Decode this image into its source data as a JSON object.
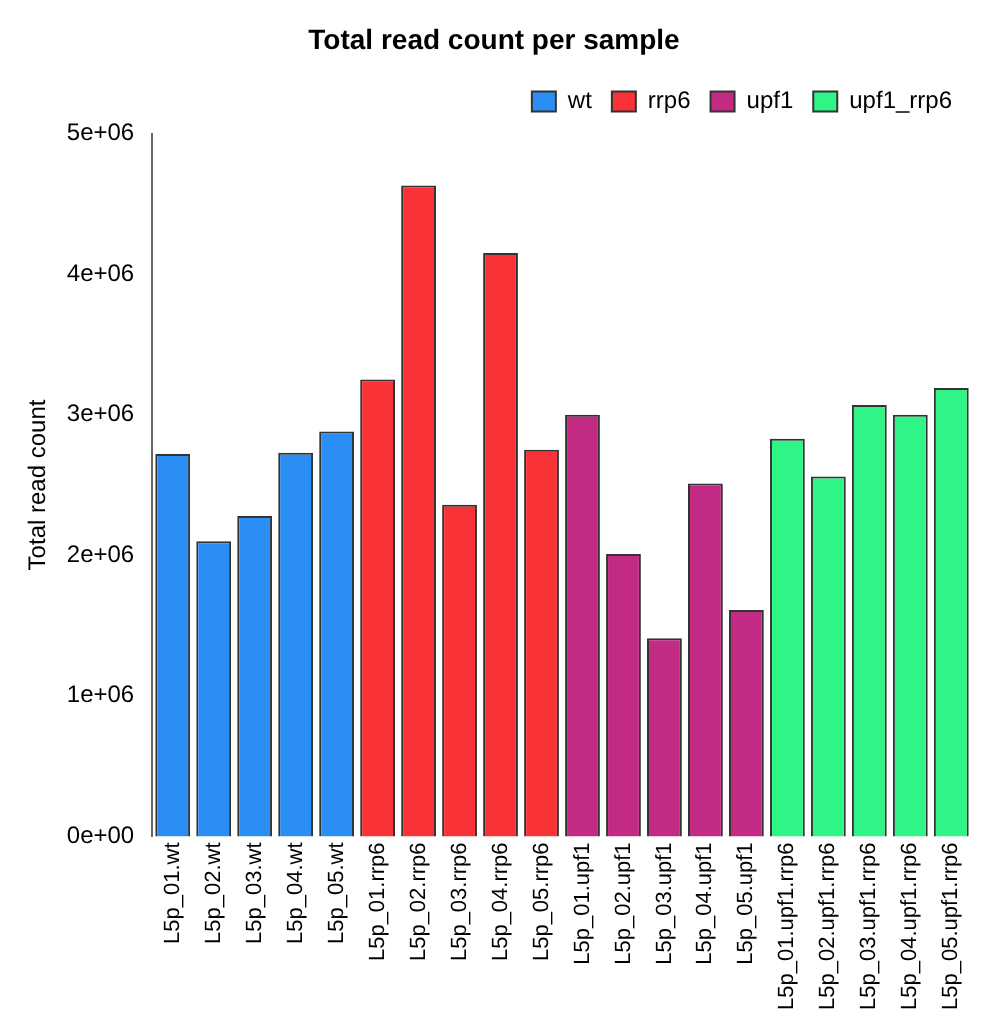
{
  "chart_data": {
    "type": "bar",
    "title": "Total read count per sample",
    "ylabel": "Total read count",
    "categories": [
      "L5p_01.wt",
      "L5p_02.wt",
      "L5p_03.wt",
      "L5p_04.wt",
      "L5p_05.wt",
      "L5p_01.rrp6",
      "L5p_02.rrp6",
      "L5p_03.rrp6",
      "L5p_04.rrp6",
      "L5p_05.rrp6",
      "L5p_01.upf1",
      "L5p_02.upf1",
      "L5p_03.upf1",
      "L5p_04.upf1",
      "L5p_05.upf1",
      "L5p_01.upf1.rrp6",
      "L5p_02.upf1.rrp6",
      "L5p_03.upf1.rrp6",
      "L5p_04.upf1.rrp6",
      "L5p_05.upf1.rrp6"
    ],
    "series": [
      {
        "name": "wt",
        "color": "#2b8ef5",
        "values": [
          2720000,
          2100000,
          2280000,
          2730000,
          2880000,
          null,
          null,
          null,
          null,
          null,
          null,
          null,
          null,
          null,
          null,
          null,
          null,
          null,
          null,
          null
        ]
      },
      {
        "name": "rrp6",
        "color": "#f93237",
        "values": [
          null,
          null,
          null,
          null,
          null,
          3250000,
          4630000,
          2360000,
          4150000,
          2750000,
          null,
          null,
          null,
          null,
          null,
          null,
          null,
          null,
          null,
          null
        ]
      },
      {
        "name": "upf1",
        "color": "#c32a83",
        "values": [
          null,
          null,
          null,
          null,
          null,
          null,
          null,
          null,
          null,
          null,
          3000000,
          2010000,
          1410000,
          2510000,
          1610000,
          null,
          null,
          null,
          null,
          null
        ]
      },
      {
        "name": "upf1_rrp6",
        "color": "#2ef586",
        "values": [
          null,
          null,
          null,
          null,
          null,
          null,
          null,
          null,
          null,
          null,
          null,
          null,
          null,
          null,
          null,
          2830000,
          2560000,
          3070000,
          3000000,
          3190000
        ]
      }
    ],
    "ylim": [
      0,
      5000000
    ],
    "yticks": [
      {
        "value": 0,
        "label": "0e+00"
      },
      {
        "value": 1000000,
        "label": "1e+06"
      },
      {
        "value": 2000000,
        "label": "2e+06"
      },
      {
        "value": 3000000,
        "label": "3e+06"
      },
      {
        "value": 4000000,
        "label": "4e+06"
      },
      {
        "value": 5000000,
        "label": "5e+06"
      }
    ],
    "grid": false,
    "legend": "top right"
  }
}
